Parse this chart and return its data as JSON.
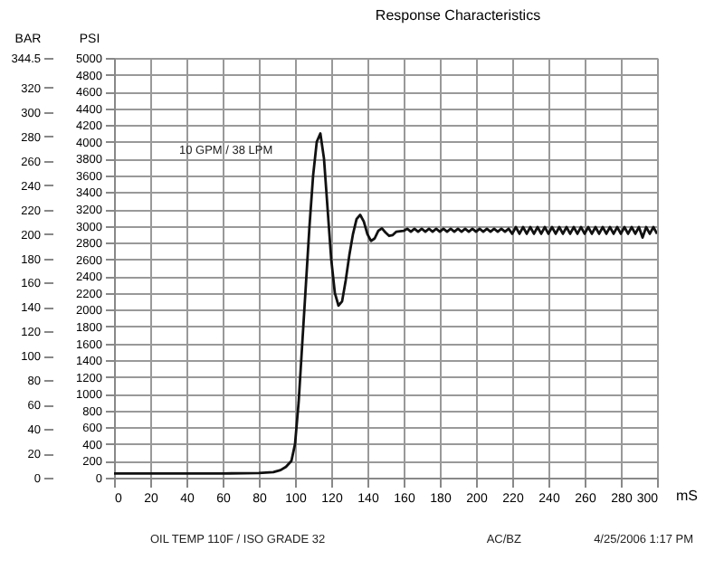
{
  "chart_data": {
    "type": "line",
    "title": "Response Characteristics",
    "xlabel": "mS",
    "ylabel": "PSI",
    "y2label": "BAR",
    "x": [
      0,
      20,
      40,
      60,
      80,
      88,
      92,
      95,
      98,
      100,
      102,
      104,
      106,
      108,
      110,
      112,
      114,
      116,
      118,
      120,
      122,
      124,
      126,
      128,
      130,
      132,
      134,
      136,
      138,
      140,
      142,
      144,
      146,
      148,
      150,
      152,
      154,
      156,
      160,
      162,
      164,
      166,
      168,
      170,
      172,
      174,
      176,
      178,
      180,
      182,
      184,
      186,
      188,
      190,
      192,
      194,
      196,
      198,
      200,
      202,
      204,
      206,
      208,
      210,
      212,
      214,
      216,
      218,
      220,
      222,
      224,
      226,
      228,
      230,
      232,
      234,
      236,
      238,
      240,
      242,
      244,
      246,
      248,
      250,
      252,
      254,
      256,
      258,
      260,
      262,
      264,
      266,
      268,
      270,
      272,
      274,
      276,
      278,
      280,
      282,
      284,
      286,
      288,
      290,
      292,
      294,
      296,
      298,
      300
    ],
    "series": [
      {
        "color": "#111111",
        "values": [
          50,
          50,
          50,
          50,
          55,
          65,
          90,
          130,
          200,
          400,
          900,
          1600,
          2300,
          3000,
          3600,
          4000,
          4100,
          3800,
          3200,
          2600,
          2200,
          2050,
          2100,
          2350,
          2650,
          2900,
          3080,
          3130,
          3050,
          2900,
          2820,
          2850,
          2940,
          2970,
          2920,
          2880,
          2890,
          2930,
          2940,
          2965,
          2930,
          2965,
          2930,
          2965,
          2930,
          2965,
          2930,
          2965,
          2930,
          2965,
          2930,
          2965,
          2930,
          2965,
          2930,
          2965,
          2930,
          2965,
          2930,
          2965,
          2930,
          2965,
          2930,
          2965,
          2930,
          2965,
          2930,
          2965,
          2905,
          2985,
          2905,
          2985,
          2905,
          2985,
          2905,
          2985,
          2905,
          2985,
          2905,
          2985,
          2905,
          2985,
          2905,
          2985,
          2905,
          2985,
          2905,
          2985,
          2905,
          2985,
          2905,
          2985,
          2905,
          2985,
          2905,
          2985,
          2905,
          2985,
          2905,
          2985,
          2905,
          2985,
          2905,
          2985,
          2860,
          2985,
          2905,
          2985,
          2905
        ]
      }
    ],
    "xlim": [
      0,
      300
    ],
    "xticks": [
      0,
      20,
      40,
      60,
      80,
      100,
      120,
      140,
      160,
      180,
      200,
      220,
      240,
      260,
      280,
      300
    ],
    "ylim": [
      0,
      5000
    ],
    "yticks": [
      0,
      200,
      400,
      600,
      800,
      1000,
      1200,
      1400,
      1600,
      1800,
      2000,
      2200,
      2400,
      2600,
      2800,
      3000,
      3200,
      3400,
      3600,
      3800,
      4000,
      4200,
      4400,
      4600,
      4800,
      5000
    ],
    "y2lim": [
      0,
      344.5
    ],
    "y2ticks": [
      0,
      20,
      40,
      60,
      80,
      100,
      120,
      140,
      160,
      180,
      200,
      220,
      240,
      260,
      280,
      300,
      320,
      344.5
    ],
    "grid": true,
    "marker": "none",
    "line_style": "solid",
    "annotations": [
      "10 GPM / 38 LPM",
      "OIL TEMP 110F / ISO GRADE 32",
      "AC/BZ",
      "4/25/2006 1:17 PM"
    ]
  }
}
